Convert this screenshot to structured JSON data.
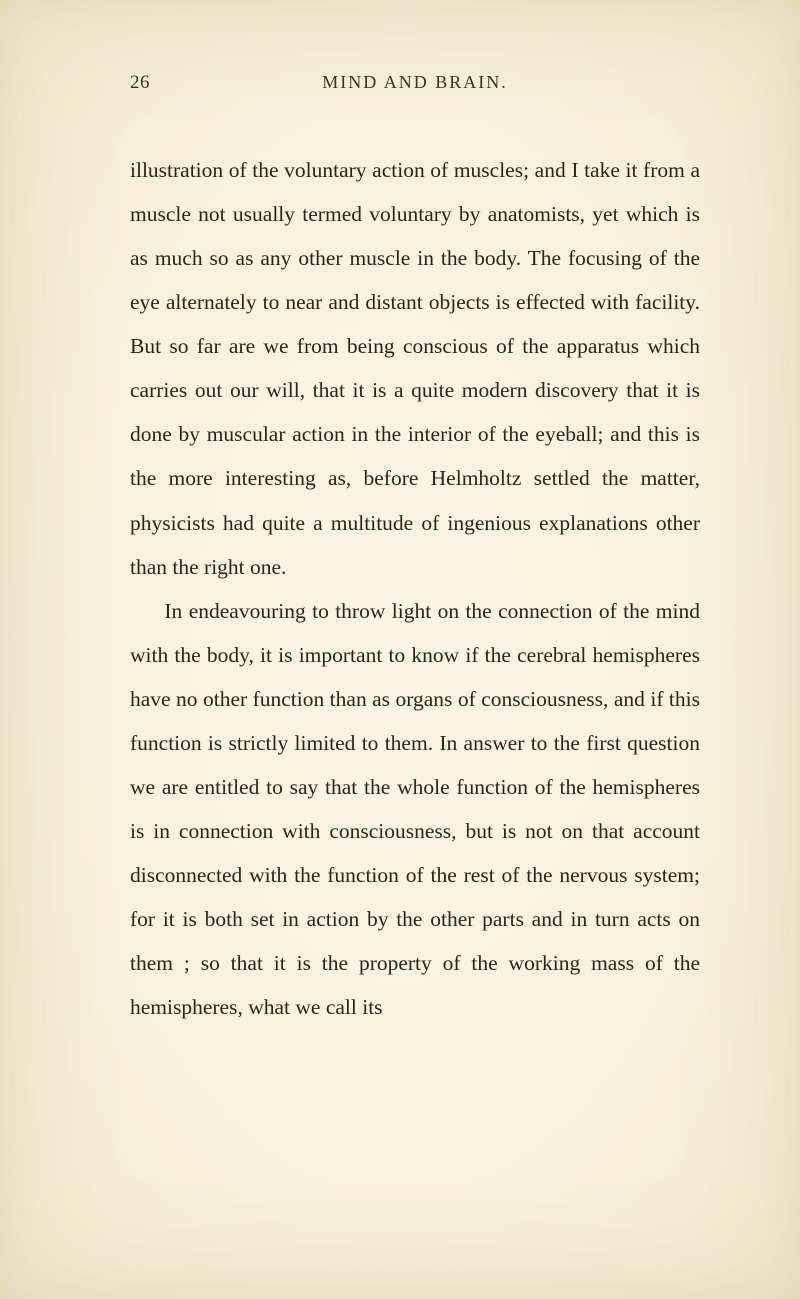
{
  "page": {
    "number": "26",
    "running_title": "MIND AND BRAIN.",
    "background_color": "#f7f2dc",
    "text_color": "#2a2518",
    "header_color": "#3a321f",
    "body_font_size_pt": 16,
    "header_font_size_pt": 14,
    "line_height": 2.05,
    "paragraphs": [
      "illustration of the voluntary action of muscles; and I take it from a muscle not usually termed voluntary by anatomists, yet which is as much so as any other muscle in the body. The focusing of the eye alter­nately to near and distant objects is effected with facility. But so far are we from being conscious of the apparatus which carries out our will, that it is a quite modern discovery that it is done by muscular action in the interior of the eyeball; and this is the more interesting as, before Helmholtz settled the matter, physicists had quite a multitude of ingenious explanations other than the right one.",
      "In endeavouring to throw light on the connection of the mind with the body, it is important to know if the cerebral hemispheres have no other function than as organs of consciousness, and if this function is strictly limited to them. In answer to the first question we are entitled to say that the whole function of the hemispheres is in connection with consciousness, but is not on that account disconnected with the function of the rest of the nervous system; for it is both set in action by the other parts and in turn acts on them ; so that it is the property of the working mass of the hemispheres, what we call its"
    ]
  }
}
